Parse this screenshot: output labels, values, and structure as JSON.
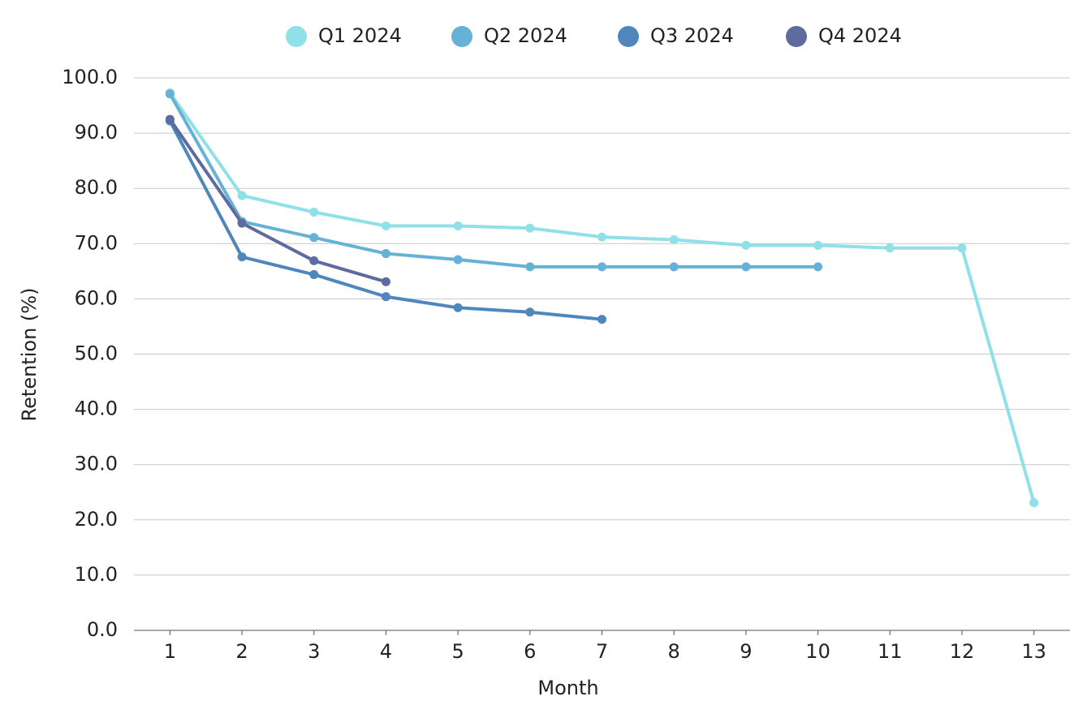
{
  "chart_data": {
    "type": "line",
    "x": [
      1,
      2,
      3,
      4,
      5,
      6,
      7,
      8,
      9,
      10,
      11,
      12,
      13
    ],
    "xlabel": "Month",
    "ylabel": "Retention (%)",
    "xlim": [
      0.5,
      13.5
    ],
    "xticks": [
      1,
      2,
      3,
      4,
      5,
      6,
      7,
      8,
      9,
      10,
      11,
      12,
      13
    ],
    "ylim": [
      0,
      100
    ],
    "yticks": [
      {
        "value": 0,
        "label": "0.0"
      },
      {
        "value": 10,
        "label": "10.0"
      },
      {
        "value": 20,
        "label": "20.0"
      },
      {
        "value": 30,
        "label": "30.0"
      },
      {
        "value": 40,
        "label": "40.0"
      },
      {
        "value": 50,
        "label": "50.0"
      },
      {
        "value": 60,
        "label": "60.0"
      },
      {
        "value": 70,
        "label": "70.0"
      },
      {
        "value": 80,
        "label": "80.0"
      },
      {
        "value": 90,
        "label": "90.0"
      },
      {
        "value": 100,
        "label": "100.0"
      }
    ],
    "grid": true,
    "legend": "top",
    "series": [
      {
        "name": "Q1 2024",
        "color": "#8fe0e8",
        "values": [
          97.3,
          78.7,
          75.7,
          73.2,
          73.2,
          72.8,
          71.2,
          70.7,
          69.7,
          69.7,
          69.2,
          69.2,
          23.1
        ]
      },
      {
        "name": "Q2 2024",
        "color": "#66b2d6",
        "values": [
          97.1,
          74.0,
          71.1,
          68.2,
          67.1,
          65.8,
          65.8,
          65.8,
          65.8,
          65.8,
          null,
          null,
          null
        ]
      },
      {
        "name": "Q3 2024",
        "color": "#4f87bd",
        "values": [
          92.2,
          67.6,
          64.4,
          60.4,
          58.4,
          57.6,
          56.3,
          null,
          null,
          null,
          null,
          null,
          null
        ]
      },
      {
        "name": "Q4 2024",
        "color": "#5d6b9e",
        "values": [
          92.5,
          73.7,
          66.9,
          63.1,
          null,
          null,
          null,
          null,
          null,
          null,
          null,
          null,
          null
        ]
      }
    ]
  }
}
